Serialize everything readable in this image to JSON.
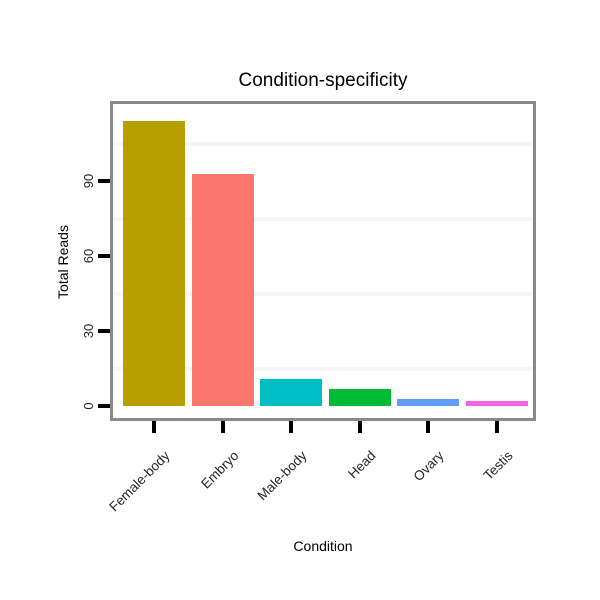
{
  "chart_data": {
    "type": "bar",
    "title": "Condition-specificity",
    "xlabel": "Condition",
    "ylabel": "Total Reads",
    "categories": [
      "Female-body",
      "Embryo",
      "Male-body",
      "Head",
      "Ovary",
      "Testis"
    ],
    "values": [
      114,
      93,
      11,
      7,
      3,
      2
    ],
    "bar_colors": [
      "#B79F00",
      "#F8766D",
      "#00BFC4",
      "#00BA38",
      "#619CFF",
      "#F564E3"
    ],
    "yticks": [
      0,
      30,
      60,
      90
    ],
    "ylim": [
      -5,
      121
    ],
    "minor_gridlines": [
      15,
      45,
      75,
      105
    ],
    "grid": "minor-horizontal-only",
    "legend": "none",
    "colors": {
      "panel_border": "#8a8a8a",
      "gridline": "#f6f6f6",
      "tick_mark": "#000000",
      "text": "#262626",
      "background": "#ffffff"
    }
  }
}
